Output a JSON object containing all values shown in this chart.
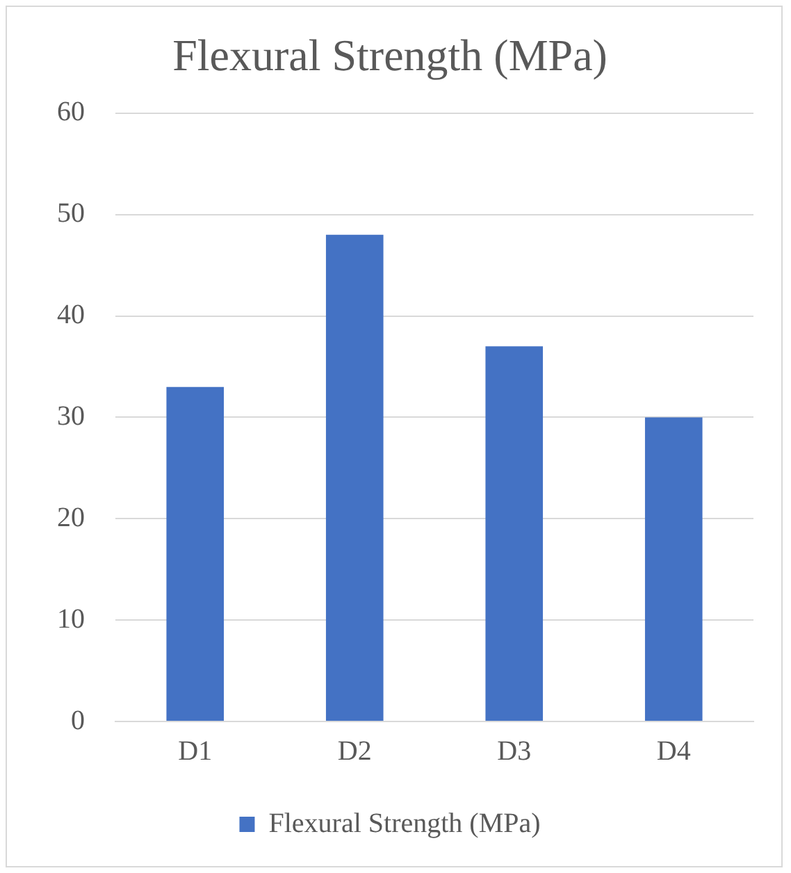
{
  "chart_data": {
    "type": "bar",
    "title": "Flexural Strength (MPa)",
    "categories": [
      "D1",
      "D2",
      "D3",
      "D4"
    ],
    "series": [
      {
        "name": "Flexural Strength (MPa)",
        "color": "#4472c4",
        "values": [
          33,
          48,
          37,
          30
        ]
      }
    ],
    "ylim": [
      0,
      60
    ],
    "yticks": [
      0,
      10,
      20,
      30,
      40,
      50,
      60
    ],
    "grid": "y",
    "legend": "bottom"
  }
}
